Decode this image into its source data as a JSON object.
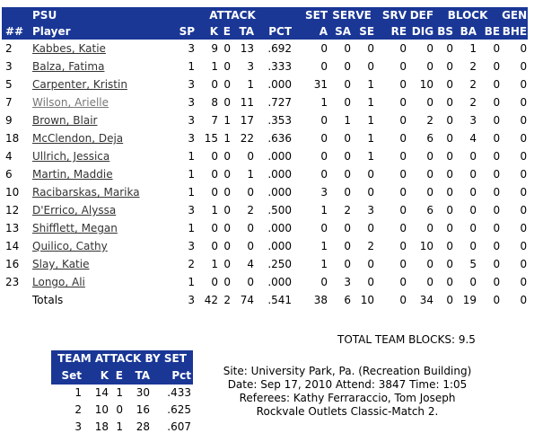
{
  "team_name": "PSU",
  "groups": {
    "attack": "ATTACK",
    "set": "SET",
    "serve": "SERVE",
    "srv": "SRV",
    "def": "DEF",
    "block": "BLOCK",
    "gen": "GEN"
  },
  "columns": [
    "##",
    "Player",
    "SP",
    "K",
    "E",
    "TA",
    "PCT",
    "A",
    "SA",
    "SE",
    "RE",
    "DIG",
    "BS",
    "BA",
    "BE",
    "BHE"
  ],
  "players": [
    {
      "num": "2",
      "name": "Kabbes, Katie",
      "sp": "3",
      "k": "9",
      "e": "0",
      "ta": "13",
      "pct": ".692",
      "a": "0",
      "sa": "0",
      "se": "0",
      "re": "0",
      "dig": "0",
      "bs": "0",
      "ba": "1",
      "be": "0",
      "bhe": "0"
    },
    {
      "num": "3",
      "name": "Balza, Fatima",
      "sp": "1",
      "k": "1",
      "e": "0",
      "ta": "3",
      "pct": ".333",
      "a": "0",
      "sa": "0",
      "se": "0",
      "re": "0",
      "dig": "0",
      "bs": "0",
      "ba": "2",
      "be": "0",
      "bhe": "0"
    },
    {
      "num": "5",
      "name": "Carpenter, Kristin",
      "sp": "3",
      "k": "0",
      "e": "0",
      "ta": "1",
      "pct": ".000",
      "a": "31",
      "sa": "0",
      "se": "1",
      "re": "0",
      "dig": "10",
      "bs": "0",
      "ba": "2",
      "be": "0",
      "bhe": "0"
    },
    {
      "num": "7",
      "name": "Wilson, Arielle",
      "sp": "3",
      "k": "8",
      "e": "0",
      "ta": "11",
      "pct": ".727",
      "a": "1",
      "sa": "0",
      "se": "1",
      "re": "0",
      "dig": "0",
      "bs": "0",
      "ba": "2",
      "be": "0",
      "bhe": "0"
    },
    {
      "num": "9",
      "name": "Brown, Blair",
      "sp": "3",
      "k": "7",
      "e": "1",
      "ta": "17",
      "pct": ".353",
      "a": "0",
      "sa": "1",
      "se": "1",
      "re": "0",
      "dig": "2",
      "bs": "0",
      "ba": "3",
      "be": "0",
      "bhe": "0"
    },
    {
      "num": "18",
      "name": "McClendon, Deja",
      "sp": "3",
      "k": "15",
      "e": "1",
      "ta": "22",
      "pct": ".636",
      "a": "0",
      "sa": "0",
      "se": "1",
      "re": "0",
      "dig": "6",
      "bs": "0",
      "ba": "4",
      "be": "0",
      "bhe": "0"
    },
    {
      "num": "4",
      "name": "Ullrich, Jessica",
      "sp": "1",
      "k": "0",
      "e": "0",
      "ta": "0",
      "pct": ".000",
      "a": "0",
      "sa": "0",
      "se": "1",
      "re": "0",
      "dig": "0",
      "bs": "0",
      "ba": "0",
      "be": "0",
      "bhe": "0"
    },
    {
      "num": "6",
      "name": "Martin, Maddie",
      "sp": "1",
      "k": "0",
      "e": "0",
      "ta": "1",
      "pct": ".000",
      "a": "0",
      "sa": "0",
      "se": "0",
      "re": "0",
      "dig": "0",
      "bs": "0",
      "ba": "0",
      "be": "0",
      "bhe": "0"
    },
    {
      "num": "10",
      "name": "Racibarskas, Marika",
      "sp": "1",
      "k": "0",
      "e": "0",
      "ta": "0",
      "pct": ".000",
      "a": "3",
      "sa": "0",
      "se": "0",
      "re": "0",
      "dig": "0",
      "bs": "0",
      "ba": "0",
      "be": "0",
      "bhe": "0"
    },
    {
      "num": "12",
      "name": "D'Errico, Alyssa",
      "sp": "3",
      "k": "1",
      "e": "0",
      "ta": "2",
      "pct": ".500",
      "a": "1",
      "sa": "2",
      "se": "3",
      "re": "0",
      "dig": "6",
      "bs": "0",
      "ba": "0",
      "be": "0",
      "bhe": "0"
    },
    {
      "num": "13",
      "name": "Shifflett, Megan",
      "sp": "1",
      "k": "0",
      "e": "0",
      "ta": "0",
      "pct": ".000",
      "a": "0",
      "sa": "0",
      "se": "0",
      "re": "0",
      "dig": "0",
      "bs": "0",
      "ba": "0",
      "be": "0",
      "bhe": "0"
    },
    {
      "num": "14",
      "name": "Quilico, Cathy",
      "sp": "3",
      "k": "0",
      "e": "0",
      "ta": "0",
      "pct": ".000",
      "a": "1",
      "sa": "0",
      "se": "2",
      "re": "0",
      "dig": "10",
      "bs": "0",
      "ba": "0",
      "be": "0",
      "bhe": "0"
    },
    {
      "num": "16",
      "name": "Slay, Katie",
      "sp": "2",
      "k": "1",
      "e": "0",
      "ta": "4",
      "pct": ".250",
      "a": "1",
      "sa": "0",
      "se": "0",
      "re": "0",
      "dig": "0",
      "bs": "0",
      "ba": "5",
      "be": "0",
      "bhe": "0"
    },
    {
      "num": "23",
      "name": "Longo, Ali",
      "sp": "1",
      "k": "0",
      "e": "0",
      "ta": "0",
      "pct": ".000",
      "a": "0",
      "sa": "3",
      "se": "0",
      "re": "0",
      "dig": "0",
      "bs": "0",
      "ba": "0",
      "be": "0",
      "bhe": "0"
    }
  ],
  "totals": {
    "label": "Totals",
    "sp": "3",
    "k": "42",
    "e": "2",
    "ta": "74",
    "pct": ".541",
    "a": "38",
    "sa": "6",
    "se": "10",
    "re": "0",
    "dig": "34",
    "bs": "0",
    "ba": "19",
    "be": "0",
    "bhe": "0"
  },
  "total_team_blocks": "TOTAL TEAM BLOCKS: 9.5",
  "team_attack_by_set": {
    "title": "TEAM ATTACK BY SET",
    "columns": [
      "Set",
      "K",
      "E",
      "TA",
      "Pct"
    ],
    "rows": [
      {
        "set": "1",
        "k": "14",
        "e": "1",
        "ta": "30",
        "pct": ".433"
      },
      {
        "set": "2",
        "k": "10",
        "e": "0",
        "ta": "16",
        "pct": ".625"
      },
      {
        "set": "3",
        "k": "18",
        "e": "1",
        "ta": "28",
        "pct": ".607"
      }
    ]
  },
  "game_info": {
    "site": "Site: University Park, Pa. (Recreation Building)",
    "date": "Date: Sep 17, 2010 Attend: 3847 Time: 1:05",
    "referees": "Referees: Kathy Ferraraccio, Tom Joseph",
    "event": "Rockvale Outlets Classic-Match 2."
  },
  "colors": {
    "header_bg": "#1a3796",
    "header_text": "#ffffff"
  }
}
